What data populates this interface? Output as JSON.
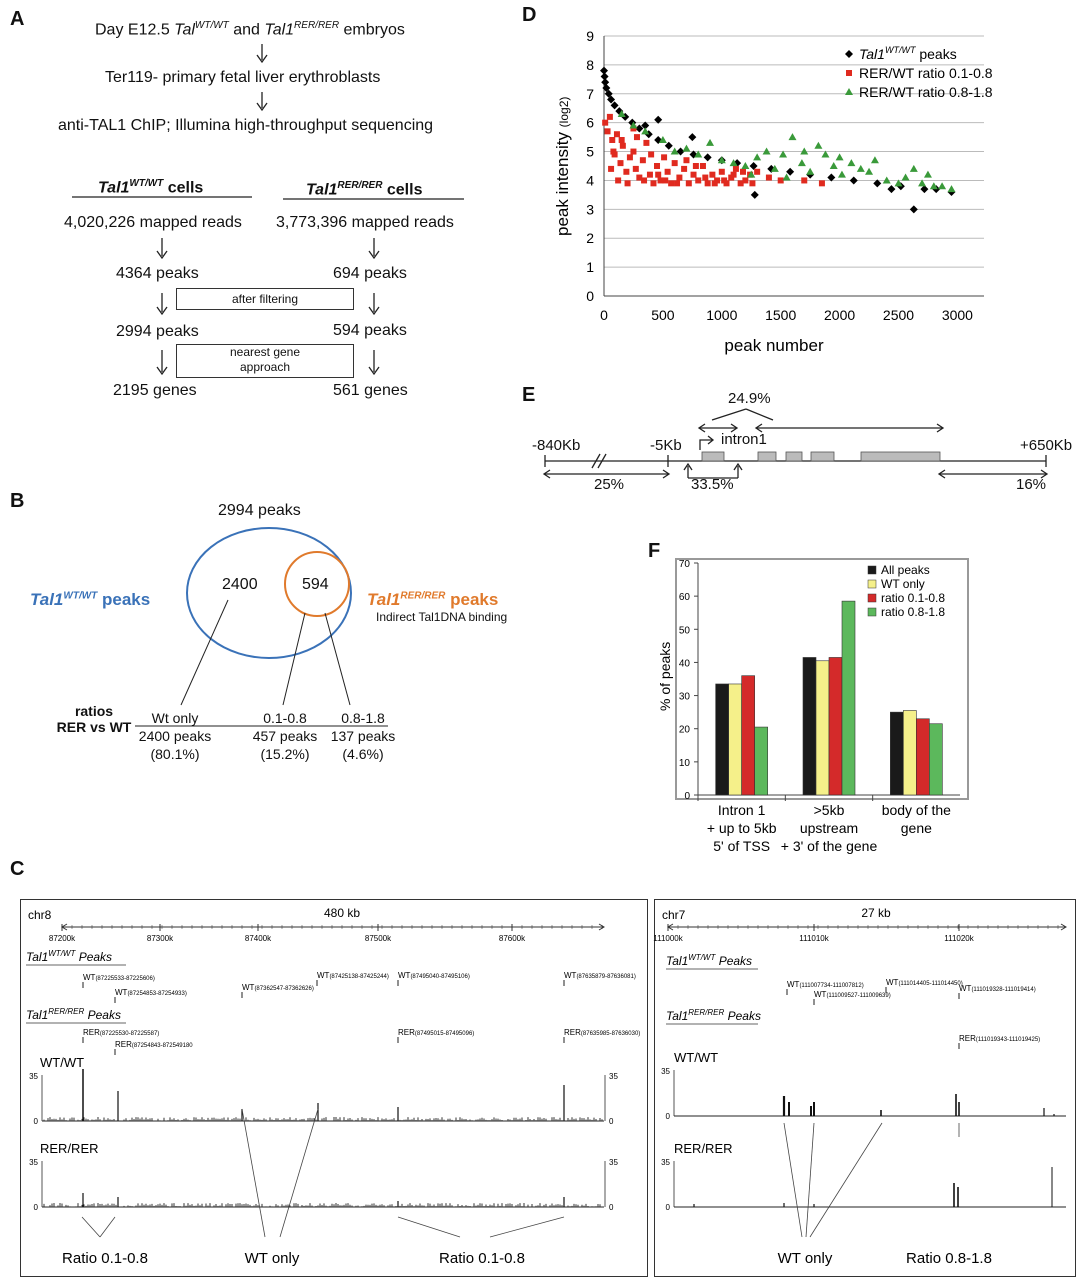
{
  "panel_labels": {
    "a": "A",
    "b": "B",
    "c": "C",
    "d": "D",
    "e": "E",
    "f": "F"
  },
  "panelA": {
    "line1_pre": "Day E12.5 ",
    "line1_g1": "Tal",
    "line1_g1_sup": "WT/WT",
    "line1_mid": " and ",
    "line1_g2": "Tal1",
    "line1_g2_sup": "RER/RER",
    "line1_post": " embryos",
    "line2": "Ter119- primary fetal liver erythroblasts",
    "line3": "anti-TAL1 ChIP; Illumina high-throughput sequencing",
    "col_wt_gene": "Tal1",
    "col_wt_sup": "WT/WT",
    "col_wt_suffix": " cells",
    "col_rer_gene": "Tal1",
    "col_rer_sup": "RER/RER",
    "col_rer_suffix": " cells",
    "wt_reads": "4,020,226 mapped reads",
    "rer_reads": "3,773,396 mapped reads",
    "wt_peaks1": "4364 peaks",
    "rer_peaks1": "694 peaks",
    "filter_box": "after filtering",
    "wt_peaks2": "2994 peaks",
    "rer_peaks2": "594 peaks",
    "gene_box_l1": "nearest gene",
    "gene_box_l2": "approach",
    "wt_genes": "2195 genes",
    "rer_genes": "561 genes"
  },
  "panelB": {
    "total": "2994 peaks",
    "wt_label_gene": "Tal1",
    "wt_label_sup": "WT/WT",
    "wt_label_suffix": " peaks",
    "rer_label_gene": "Tal1",
    "rer_label_sup": "RER/RER",
    "rer_label_suffix": " peaks",
    "indirect": "Indirect Tal1DNA binding",
    "outer_value": "2400",
    "inner_value": "594",
    "ratios_l1": "ratios",
    "ratios_l2": "RER vs WT",
    "columns": [
      {
        "head": "Wt only",
        "count": "2400 peaks",
        "pct": "(80.1%)"
      },
      {
        "head": "0.1-0.8",
        "count": "457 peaks",
        "pct": "(15.2%)"
      },
      {
        "head": "0.8-1.8",
        "count": "137 peaks",
        "pct": "(4.6%)"
      }
    ],
    "colors": {
      "wt": "#3a72b8",
      "rer": "#e07a2c"
    }
  },
  "panelC": {
    "left": {
      "chrom": "chr8",
      "scale": "480 kb",
      "ticks": [
        "87200k",
        "87300k",
        "87400k",
        "87500k",
        "87600k"
      ],
      "wt_title_gene": "Tal1",
      "wt_title_sup": "WT/WT",
      "wt_title_suffix": " Peaks",
      "rer_title_gene": "Tal1",
      "rer_title_sup": "RER/RER",
      "rer_title_suffix": " Peaks",
      "wt_peaks": [
        {
          "l": "WT",
          "c": "(87225533-87225606)"
        },
        {
          "l": "WT",
          "c": "(87254853-87254933)"
        },
        {
          "l": "WT",
          "c": "(87362547-87362626)"
        },
        {
          "l": "WT",
          "c": "(87425138-87425244)"
        },
        {
          "l": "WT",
          "c": "(87495040-87495106)"
        },
        {
          "l": "WT",
          "c": "(87635879-87636081)"
        }
      ],
      "rer_peaks": [
        {
          "l": "RER",
          "c": "(87225530-87225587)"
        },
        {
          "l": "RER",
          "c": "(87254843-872549180"
        },
        {
          "l": "RER",
          "c": "(87495015-87495096)"
        },
        {
          "l": "RER",
          "c": "(87635985-87636030)"
        }
      ],
      "track1": "WT/WT",
      "track2": "RER/RER",
      "ymax": "35",
      "ymin": "0",
      "bottom": [
        "Ratio 0.1-0.8",
        "WT only",
        "Ratio 0.1-0.8"
      ]
    },
    "right": {
      "chrom": "chr7",
      "scale": "27 kb",
      "ticks": [
        "111000k",
        "111010k",
        "111020k"
      ],
      "wt_title_gene": "Tal1",
      "wt_title_sup": "WT/WT",
      "wt_title_suffix": " Peaks",
      "rer_title_gene": "Tal1",
      "rer_title_sup": "RER/RER",
      "rer_title_suffix": " Peaks",
      "wt_peaks": [
        {
          "l": "WT",
          "c": "(111007734-111007812)"
        },
        {
          "l": "WT",
          "c": "(111009527-111009639)"
        },
        {
          "l": "WT",
          "c": "(111014405-111014450)"
        },
        {
          "l": "WT",
          "c": "(111019328-111019414)"
        }
      ],
      "rer_peaks": [
        {
          "l": "RER",
          "c": "(111019343-111019425)"
        }
      ],
      "track1": "WT/WT",
      "track2": "RER/RER",
      "ymax": "35",
      "ymin": "0",
      "bottom": [
        "WT only",
        "Ratio 0.8-1.8"
      ]
    }
  },
  "panelE": {
    "left_coord": "-840Kb",
    "mid_coord": "-5Kb",
    "right_coord": "+650Kb",
    "intron": "intron1",
    "top_pct": "24.9%",
    "pct_left": "25%",
    "pct_mid": "33.5%",
    "pct_right": "16%"
  },
  "chart_data": [
    {
      "id": "D",
      "type": "scatter",
      "xlabel": "peak number",
      "ylabel": "peak intensity",
      "ylabel_suffix": "(log2)",
      "xlim": [
        0,
        3000
      ],
      "ylim": [
        0,
        9
      ],
      "xticks": [
        "0",
        "500",
        "1000",
        "1500",
        "2000",
        "2500",
        "3000"
      ],
      "yticks": [
        "0",
        "1",
        "2",
        "3",
        "4",
        "5",
        "6",
        "7",
        "8",
        "9"
      ],
      "grid": true,
      "legend_position": "top-right",
      "series": [
        {
          "name_gene": "Tal1",
          "name_sup": "WT/WT",
          "name_suffix": " peaks",
          "color": "#000000",
          "marker": "diamond",
          "points": [
            [
              0,
              7.8
            ],
            [
              5,
              7.6
            ],
            [
              10,
              7.4
            ],
            [
              20,
              7.2
            ],
            [
              40,
              7.0
            ],
            [
              60,
              6.8
            ],
            [
              90,
              6.6
            ],
            [
              130,
              6.4
            ],
            [
              180,
              6.2
            ],
            [
              240,
              6.0
            ],
            [
              300,
              5.8
            ],
            [
              380,
              5.6
            ],
            [
              460,
              5.4
            ],
            [
              550,
              5.2
            ],
            [
              650,
              5.0
            ],
            [
              760,
              4.9
            ],
            [
              880,
              4.8
            ],
            [
              1000,
              4.7
            ],
            [
              1130,
              4.6
            ],
            [
              1270,
              4.5
            ],
            [
              1420,
              4.4
            ],
            [
              1580,
              4.3
            ],
            [
              1750,
              4.2
            ],
            [
              1930,
              4.1
            ],
            [
              2120,
              4.0
            ],
            [
              2320,
              3.9
            ],
            [
              2520,
              3.8
            ],
            [
              2720,
              3.7
            ],
            [
              2950,
              3.6
            ],
            [
              1280,
              3.5
            ],
            [
              2630,
              3.0
            ],
            [
              460,
              6.1
            ],
            [
              350,
              5.9
            ],
            [
              750,
              5.5
            ],
            [
              2440,
              3.7
            ],
            [
              2820,
              3.7
            ]
          ]
        },
        {
          "name": "RER/WT ratio 0.1-0.8",
          "color": "#e02a1f",
          "marker": "square",
          "points": [
            [
              10,
              6.0
            ],
            [
              30,
              5.7
            ],
            [
              50,
              6.2
            ],
            [
              70,
              5.4
            ],
            [
              90,
              4.9
            ],
            [
              110,
              5.6
            ],
            [
              140,
              4.6
            ],
            [
              160,
              5.2
            ],
            [
              190,
              4.3
            ],
            [
              220,
              4.8
            ],
            [
              250,
              5.0
            ],
            [
              270,
              4.4
            ],
            [
              300,
              4.1
            ],
            [
              330,
              4.7
            ],
            [
              360,
              5.3
            ],
            [
              390,
              4.2
            ],
            [
              420,
              3.9
            ],
            [
              450,
              4.5
            ],
            [
              480,
              4.0
            ],
            [
              510,
              4.8
            ],
            [
              540,
              4.3
            ],
            [
              570,
              3.9
            ],
            [
              600,
              4.6
            ],
            [
              640,
              4.1
            ],
            [
              680,
              4.4
            ],
            [
              720,
              3.9
            ],
            [
              760,
              4.2
            ],
            [
              800,
              4.0
            ],
            [
              840,
              4.5
            ],
            [
              880,
              3.9
            ],
            [
              920,
              4.2
            ],
            [
              960,
              4.0
            ],
            [
              1000,
              4.3
            ],
            [
              1040,
              3.9
            ],
            [
              1080,
              4.1
            ],
            [
              1120,
              4.4
            ],
            [
              1160,
              3.9
            ],
            [
              1200,
              4.0
            ],
            [
              1240,
              4.2
            ],
            [
              60,
              4.4
            ],
            [
              120,
              4.0
            ],
            [
              200,
              3.9
            ],
            [
              280,
              5.5
            ],
            [
              340,
              4.0
            ],
            [
              400,
              4.9
            ],
            [
              460,
              4.2
            ],
            [
              520,
              4.0
            ],
            [
              620,
              3.9
            ],
            [
              700,
              4.7
            ],
            [
              780,
              4.5
            ],
            [
              860,
              4.1
            ],
            [
              940,
              3.9
            ],
            [
              1020,
              4.0
            ],
            [
              1100,
              4.2
            ],
            [
              1180,
              4.3
            ],
            [
              1260,
              3.9
            ],
            [
              1300,
              4.3
            ],
            [
              1400,
              4.1
            ],
            [
              1500,
              4.0
            ],
            [
              1700,
              4.0
            ],
            [
              1850,
              3.9
            ],
            [
              250,
              5.8
            ],
            [
              150,
              5.4
            ],
            [
              80,
              5.0
            ]
          ]
        },
        {
          "name": "RER/WT ratio 0.8-1.8",
          "color": "#3a9a3a",
          "marker": "triangle",
          "points": [
            [
              150,
              6.3
            ],
            [
              250,
              5.9
            ],
            [
              350,
              5.7
            ],
            [
              500,
              5.4
            ],
            [
              600,
              5.0
            ],
            [
              700,
              5.1
            ],
            [
              800,
              4.9
            ],
            [
              900,
              5.3
            ],
            [
              1000,
              4.7
            ],
            [
              1100,
              4.6
            ],
            [
              1200,
              4.5
            ],
            [
              1300,
              4.8
            ],
            [
              1380,
              5.0
            ],
            [
              1450,
              4.4
            ],
            [
              1520,
              4.9
            ],
            [
              1600,
              5.5
            ],
            [
              1680,
              4.6
            ],
            [
              1750,
              4.3
            ],
            [
              1820,
              5.2
            ],
            [
              1880,
              4.9
            ],
            [
              1950,
              4.5
            ],
            [
              2020,
              4.2
            ],
            [
              2100,
              4.6
            ],
            [
              2180,
              4.4
            ],
            [
              2250,
              4.3
            ],
            [
              2400,
              4.0
            ],
            [
              2500,
              3.9
            ],
            [
              2560,
              4.1
            ],
            [
              2630,
              4.4
            ],
            [
              2700,
              3.9
            ],
            [
              2750,
              4.2
            ],
            [
              2800,
              3.8
            ],
            [
              2870,
              3.8
            ],
            [
              2950,
              3.7
            ],
            [
              1250,
              4.2
            ],
            [
              1550,
              4.1
            ],
            [
              1700,
              5.0
            ],
            [
              2000,
              4.8
            ],
            [
              2300,
              4.7
            ]
          ]
        }
      ]
    },
    {
      "id": "F",
      "type": "bar",
      "ylabel": "% of peaks",
      "ylim": [
        0,
        70
      ],
      "yticks": [
        "0",
        "10",
        "20",
        "30",
        "40",
        "50",
        "60",
        "70"
      ],
      "categories": [
        {
          "l1": "Intron 1",
          "l2": "+ up to 5kb",
          "l3": "5' of TSS"
        },
        {
          "l1": ">5kb",
          "l2": "upstream",
          "l3": "+ 3' of the gene"
        },
        {
          "l1": "body of the",
          "l2": "gene",
          "l3": ""
        }
      ],
      "legend_position": "top-right",
      "series": [
        {
          "name": "All peaks",
          "color": "#1a1a1a",
          "values": [
            33.5,
            41.5,
            25
          ]
        },
        {
          "name": "WT only",
          "color": "#f5f08a",
          "values": [
            33.5,
            40.5,
            25.5
          ]
        },
        {
          "name": "ratio 0.1-0.8",
          "color": "#d42a2a",
          "values": [
            36,
            41.5,
            23
          ]
        },
        {
          "name": "ratio 0.8-1.8",
          "color": "#5cb85c",
          "values": [
            20.5,
            58.5,
            21.5
          ]
        }
      ]
    }
  ]
}
